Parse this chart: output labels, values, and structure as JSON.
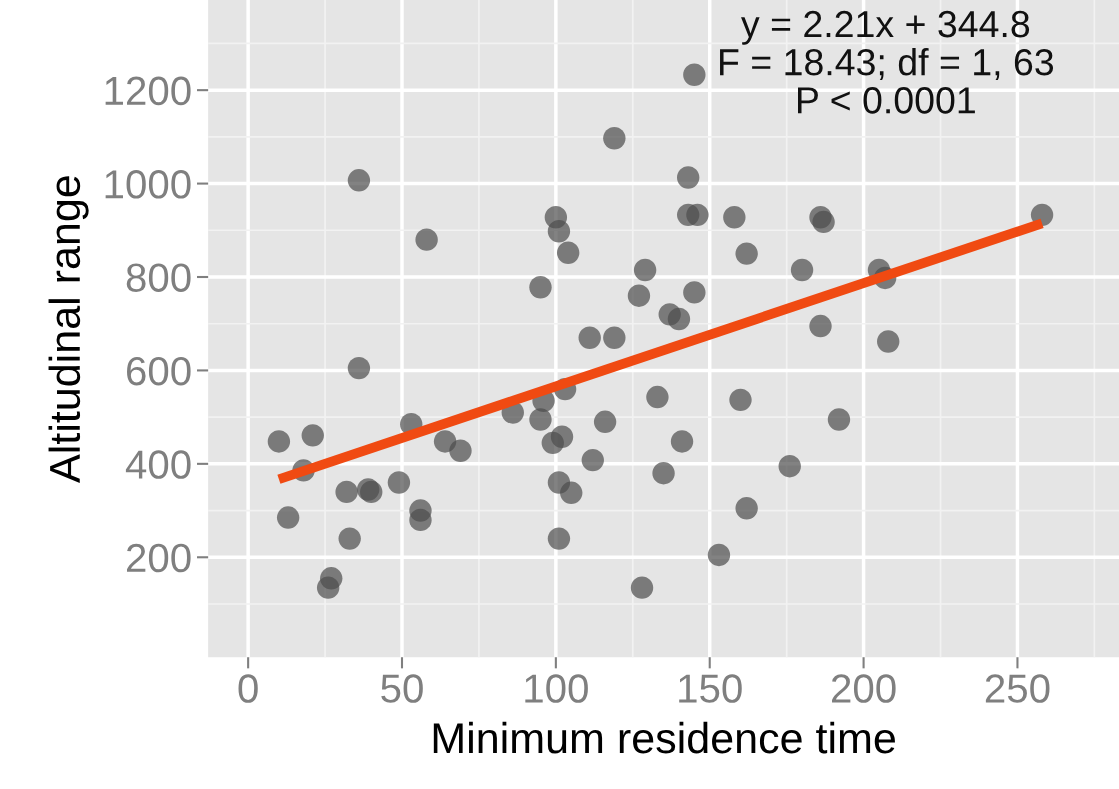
{
  "chart_data": {
    "type": "scatter",
    "xlabel": "Minimum residence time",
    "ylabel": "Altitudinal range",
    "annotations": [
      "y = 2.21x + 344.8",
      "F = 18.43; df = 1, 63",
      "P < 0.0001"
    ],
    "xlim": [
      -13,
      283
    ],
    "ylim": [
      -14,
      1393
    ],
    "xticks": [
      0,
      50,
      100,
      150,
      200,
      250
    ],
    "yticks": [
      200,
      400,
      600,
      800,
      1000,
      1200
    ],
    "grid": true,
    "series": [
      {
        "color": "#4d4d4d",
        "marker": "circle",
        "x": [
          10,
          21,
          18,
          13,
          27,
          26,
          33,
          32,
          40,
          39,
          49,
          36,
          36,
          58,
          53,
          56,
          56,
          64,
          69,
          86,
          95,
          96,
          95,
          99,
          102,
          101,
          101,
          105,
          100,
          101,
          104,
          103,
          112,
          116,
          111,
          119,
          119,
          127,
          129,
          128,
          133,
          135,
          137,
          140,
          141,
          143,
          143,
          146,
          145,
          145,
          153,
          158,
          160,
          162,
          162,
          176,
          180,
          186,
          187,
          186,
          192,
          205,
          207,
          208,
          258
        ],
        "values": [
          448,
          461,
          386,
          285,
          155,
          135,
          240,
          340,
          340,
          345,
          360,
          1007,
          605,
          880,
          485,
          300,
          280,
          448,
          428,
          510,
          778,
          535,
          495,
          445,
          458,
          360,
          240,
          338,
          928,
          898,
          852,
          560,
          408,
          490,
          670,
          670,
          1097,
          760,
          815,
          135,
          543,
          380,
          720,
          710,
          448,
          1013,
          933,
          933,
          1233,
          767,
          205,
          928,
          537,
          850,
          305,
          395,
          815,
          928,
          918,
          695,
          495,
          815,
          798,
          662,
          933
        ]
      },
      {
        "type": "line",
        "color": "#f04a12",
        "x": [
          10,
          258
        ],
        "values": [
          367,
          915
        ]
      }
    ]
  }
}
